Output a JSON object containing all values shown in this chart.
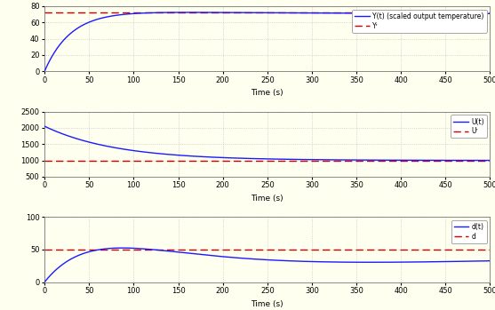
{
  "t_end": 500,
  "plot1": {
    "ylim": [
      0,
      80
    ],
    "yticks": [
      0,
      20,
      40,
      60,
      80
    ],
    "ref_value": 72,
    "xlabel": "Time (s)",
    "legend": [
      "Y(t) (scaled output temperature)",
      "Yʳ"
    ],
    "line_color": "#1a1aff",
    "ref_color": "#cc0000"
  },
  "plot2": {
    "ylim": [
      500,
      2500
    ],
    "yticks": [
      500,
      1000,
      1500,
      2000,
      2500
    ],
    "ref_value": 1000,
    "xlabel": "Time (s)",
    "legend": [
      "U(t)",
      "Uʳ"
    ],
    "line_color": "#1a1aff",
    "ref_color": "#cc0000"
  },
  "plot3": {
    "ylim": [
      0,
      100
    ],
    "yticks": [
      0,
      50,
      100
    ],
    "ref_value": 50,
    "xlabel": "Time (s)",
    "legend": [
      "d(t)",
      "d"
    ],
    "line_color": "#1a1aff",
    "ref_color": "#cc0000"
  },
  "xticks": [
    0,
    50,
    100,
    150,
    200,
    250,
    300,
    350,
    400,
    450,
    500
  ],
  "background_color": "#fffff0",
  "grid_color": "#bbbbbb"
}
